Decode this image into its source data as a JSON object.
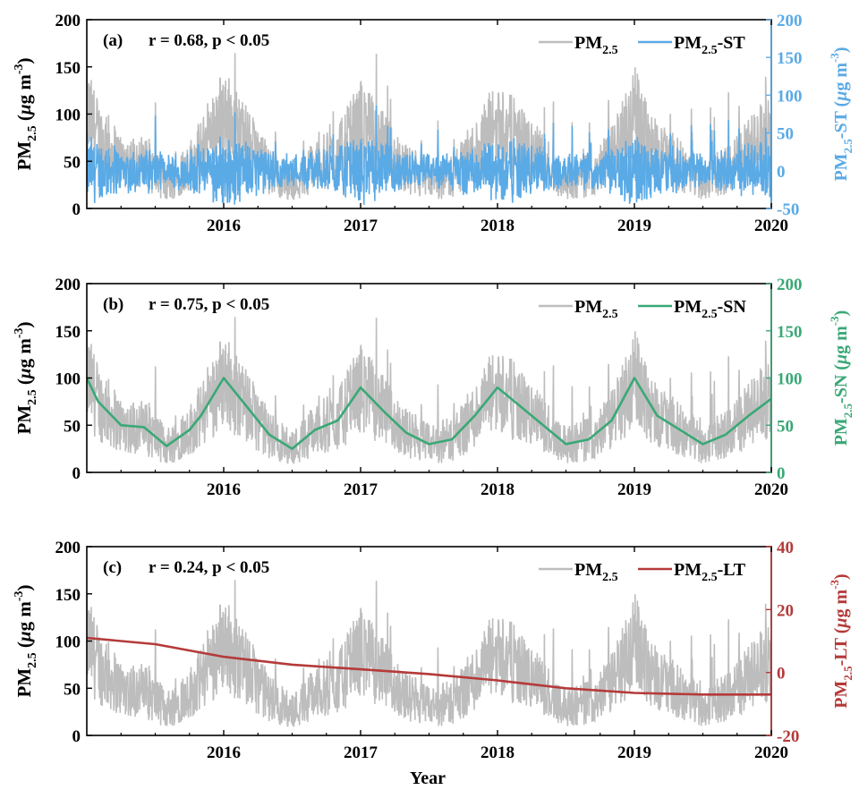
{
  "figure": {
    "xlabel": "Year"
  },
  "chart_data": [
    {
      "type": "line",
      "panel_label": "(a)",
      "annotation": "r = 0.68, p < 0.05",
      "x_ticks": [
        "2016",
        "2017",
        "2018",
        "2019",
        "2020"
      ],
      "xlim": [
        "2015-01-01",
        "2020-01-01"
      ],
      "y_left": {
        "label_main": "PM",
        "label_sub": "2.5",
        "label_unit_prefix": " (",
        "label_mu": "μ",
        "label_unit": "g m",
        "label_exp": "-3",
        "label_close": ")",
        "ticks": [
          "0",
          "50",
          "100",
          "150",
          "200"
        ],
        "lim": [
          0,
          200
        ]
      },
      "y_right": {
        "label_main": "PM",
        "label_sub": "2.5",
        "label_suffix": "-ST",
        "label_unit_prefix": " (",
        "label_mu": "μ",
        "label_unit": "g m",
        "label_exp": "-3",
        "label_close": ")",
        "ticks": [
          "-50",
          "0",
          "50",
          "100",
          "150",
          "200"
        ],
        "lim": [
          -50,
          200
        ],
        "color": "#5aaae6"
      },
      "legend": [
        {
          "main": "PM",
          "sub": "2.5",
          "suffix": "",
          "color": "#bdbdbd"
        },
        {
          "main": "PM",
          "sub": "2.5",
          "suffix": "-ST",
          "color": "#5aaae6"
        }
      ],
      "series": [
        {
          "name": "PM2.5",
          "axis": "left",
          "color": "#bdbdbd",
          "kind": "daily_raw"
        },
        {
          "name": "PM2.5-ST",
          "axis": "right",
          "color": "#5aaae6",
          "kind": "short_term"
        }
      ]
    },
    {
      "type": "line",
      "panel_label": "(b)",
      "annotation": "r = 0.75, p < 0.05",
      "x_ticks": [
        "2016",
        "2017",
        "2018",
        "2019",
        "2020"
      ],
      "xlim": [
        "2015-01-01",
        "2020-01-01"
      ],
      "y_left": {
        "label_main": "PM",
        "label_sub": "2.5",
        "label_unit_prefix": " (",
        "label_mu": "μ",
        "label_unit": "g m",
        "label_exp": "-3",
        "label_close": ")",
        "ticks": [
          "0",
          "50",
          "100",
          "150",
          "200"
        ],
        "lim": [
          0,
          200
        ]
      },
      "y_right": {
        "label_main": "PM",
        "label_sub": "2.5",
        "label_suffix": "-SN",
        "label_unit_prefix": " (",
        "label_mu": "μ",
        "label_unit": "g m",
        "label_exp": "-3",
        "label_close": ")",
        "ticks": [
          "0",
          "50",
          "100",
          "150",
          "200"
        ],
        "lim": [
          0,
          200
        ],
        "color": "#3aa876"
      },
      "legend": [
        {
          "main": "PM",
          "sub": "2.5",
          "suffix": "",
          "color": "#bdbdbd"
        },
        {
          "main": "PM",
          "sub": "2.5",
          "suffix": "-SN",
          "color": "#3aa876"
        }
      ],
      "series": [
        {
          "name": "PM2.5",
          "axis": "left",
          "color": "#bdbdbd",
          "kind": "daily_raw"
        },
        {
          "name": "PM2.5-SN",
          "axis": "right",
          "color": "#3aa876",
          "kind": "seasonal",
          "x": [
            "2015-01",
            "2015-02",
            "2015-04",
            "2015-06",
            "2015-08",
            "2015-10",
            "2015-11",
            "2016-01",
            "2016-03",
            "2016-05",
            "2016-07",
            "2016-09",
            "2016-11",
            "2017-01",
            "2017-03",
            "2017-05",
            "2017-07",
            "2017-09",
            "2017-11",
            "2018-01",
            "2018-03",
            "2018-05",
            "2018-07",
            "2018-09",
            "2018-11",
            "2019-01",
            "2019-03",
            "2019-05",
            "2019-07",
            "2019-09",
            "2019-11",
            "2020-01"
          ],
          "y": [
            100,
            75,
            50,
            48,
            28,
            45,
            60,
            100,
            70,
            40,
            25,
            45,
            55,
            90,
            65,
            42,
            30,
            35,
            60,
            90,
            70,
            50,
            30,
            35,
            55,
            100,
            60,
            45,
            30,
            40,
            60,
            78
          ]
        }
      ]
    },
    {
      "type": "line",
      "panel_label": "(c)",
      "annotation": "r = 0.24, p < 0.05",
      "x_ticks": [
        "2016",
        "2017",
        "2018",
        "2019",
        "2020"
      ],
      "xlim": [
        "2015-01-01",
        "2020-01-01"
      ],
      "y_left": {
        "label_main": "PM",
        "label_sub": "2.5",
        "label_unit_prefix": " (",
        "label_mu": "μ",
        "label_unit": "g m",
        "label_exp": "-3",
        "label_close": ")",
        "ticks": [
          "0",
          "50",
          "100",
          "150",
          "200"
        ],
        "lim": [
          0,
          200
        ]
      },
      "y_right": {
        "label_main": "PM",
        "label_sub": "2.5",
        "label_suffix": "-LT",
        "label_unit_prefix": " (",
        "label_mu": "μ",
        "label_unit": "g m",
        "label_exp": "-3",
        "label_close": ")",
        "ticks": [
          "-20",
          "0",
          "20",
          "40"
        ],
        "lim": [
          -20,
          40
        ],
        "color": "#b53a3a"
      },
      "legend": [
        {
          "main": "PM",
          "sub": "2.5",
          "suffix": "",
          "color": "#bdbdbd"
        },
        {
          "main": "PM",
          "sub": "2.5",
          "suffix": "-LT",
          "color": "#b53a3a"
        }
      ],
      "series": [
        {
          "name": "PM2.5",
          "axis": "left",
          "color": "#bdbdbd",
          "kind": "daily_raw"
        },
        {
          "name": "PM2.5-LT",
          "axis": "right",
          "color": "#b53a3a",
          "kind": "long_term",
          "x": [
            "2015-01",
            "2015-07",
            "2016-01",
            "2016-07",
            "2017-01",
            "2017-07",
            "2018-01",
            "2018-07",
            "2019-01",
            "2019-07",
            "2020-01"
          ],
          "y": [
            11,
            9,
            5,
            2.5,
            1,
            -0.5,
            -2.5,
            -5,
            -6.5,
            -7,
            -7
          ]
        }
      ]
    }
  ]
}
